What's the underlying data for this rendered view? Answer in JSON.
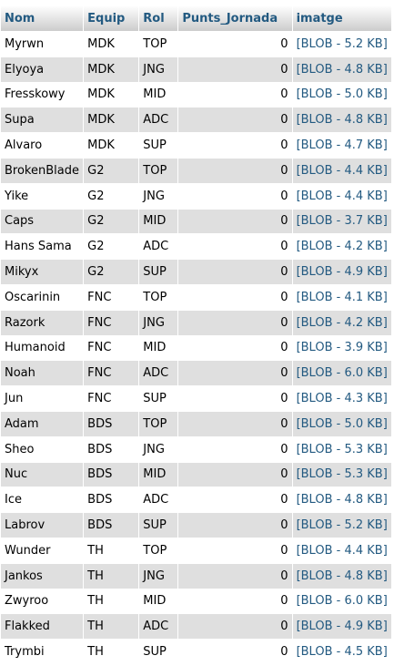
{
  "columns": [
    "Nom",
    "Equip",
    "Rol",
    "Punts_Jornada",
    "imatge"
  ],
  "rows": [
    [
      "Myrwn",
      "MDK",
      "TOP",
      "0",
      "[BLOB - 5.2 KB]"
    ],
    [
      "Elyoya",
      "MDK",
      "JNG",
      "0",
      "[BLOB - 4.8 KB]"
    ],
    [
      "Fresskowy",
      "MDK",
      "MID",
      "0",
      "[BLOB - 5.0 KB]"
    ],
    [
      "Supa",
      "MDK",
      "ADC",
      "0",
      "[BLOB - 4.8 KB]"
    ],
    [
      "Alvaro",
      "MDK",
      "SUP",
      "0",
      "[BLOB - 4.7 KB]"
    ],
    [
      "BrokenBlade",
      "G2",
      "TOP",
      "0",
      "[BLOB - 4.4 KB]"
    ],
    [
      "Yike",
      "G2",
      "JNG",
      "0",
      "[BLOB - 4.4 KB]"
    ],
    [
      "Caps",
      "G2",
      "MID",
      "0",
      "[BLOB - 3.7 KB]"
    ],
    [
      "Hans Sama",
      "G2",
      "ADC",
      "0",
      "[BLOB - 4.2 KB]"
    ],
    [
      "Mikyx",
      "G2",
      "SUP",
      "0",
      "[BLOB - 4.9 KB]"
    ],
    [
      "Oscarinin",
      "FNC",
      "TOP",
      "0",
      "[BLOB - 4.1 KB]"
    ],
    [
      "Razork",
      "FNC",
      "JNG",
      "0",
      "[BLOB - 4.2 KB]"
    ],
    [
      "Humanoid",
      "FNC",
      "MID",
      "0",
      "[BLOB - 3.9 KB]"
    ],
    [
      "Noah",
      "FNC",
      "ADC",
      "0",
      "[BLOB - 6.0 KB]"
    ],
    [
      "Jun",
      "FNC",
      "SUP",
      "0",
      "[BLOB - 4.3 KB]"
    ],
    [
      "Adam",
      "BDS",
      "TOP",
      "0",
      "[BLOB - 5.0 KB]"
    ],
    [
      "Sheo",
      "BDS",
      "JNG",
      "0",
      "[BLOB - 5.3 KB]"
    ],
    [
      "Nuc",
      "BDS",
      "MID",
      "0",
      "[BLOB - 5.3 KB]"
    ],
    [
      "Ice",
      "BDS",
      "ADC",
      "0",
      "[BLOB - 4.8 KB]"
    ],
    [
      "Labrov",
      "BDS",
      "SUP",
      "0",
      "[BLOB - 5.2 KB]"
    ],
    [
      "Wunder",
      "TH",
      "TOP",
      "0",
      "[BLOB - 4.4 KB]"
    ],
    [
      "Jankos",
      "TH",
      "JNG",
      "0",
      "[BLOB - 4.8 KB]"
    ],
    [
      "Zwyroo",
      "TH",
      "MID",
      "0",
      "[BLOB - 6.0 KB]"
    ],
    [
      "Flakked",
      "TH",
      "ADC",
      "0",
      "[BLOB - 4.9 KB]"
    ],
    [
      "Trymbi",
      "TH",
      "SUP",
      "0",
      "[BLOB - 4.5 KB]"
    ]
  ],
  "colors": {
    "header_text": "#235a81",
    "link_text": "#235a81",
    "row_alt_background": "#dfdfdf"
  }
}
